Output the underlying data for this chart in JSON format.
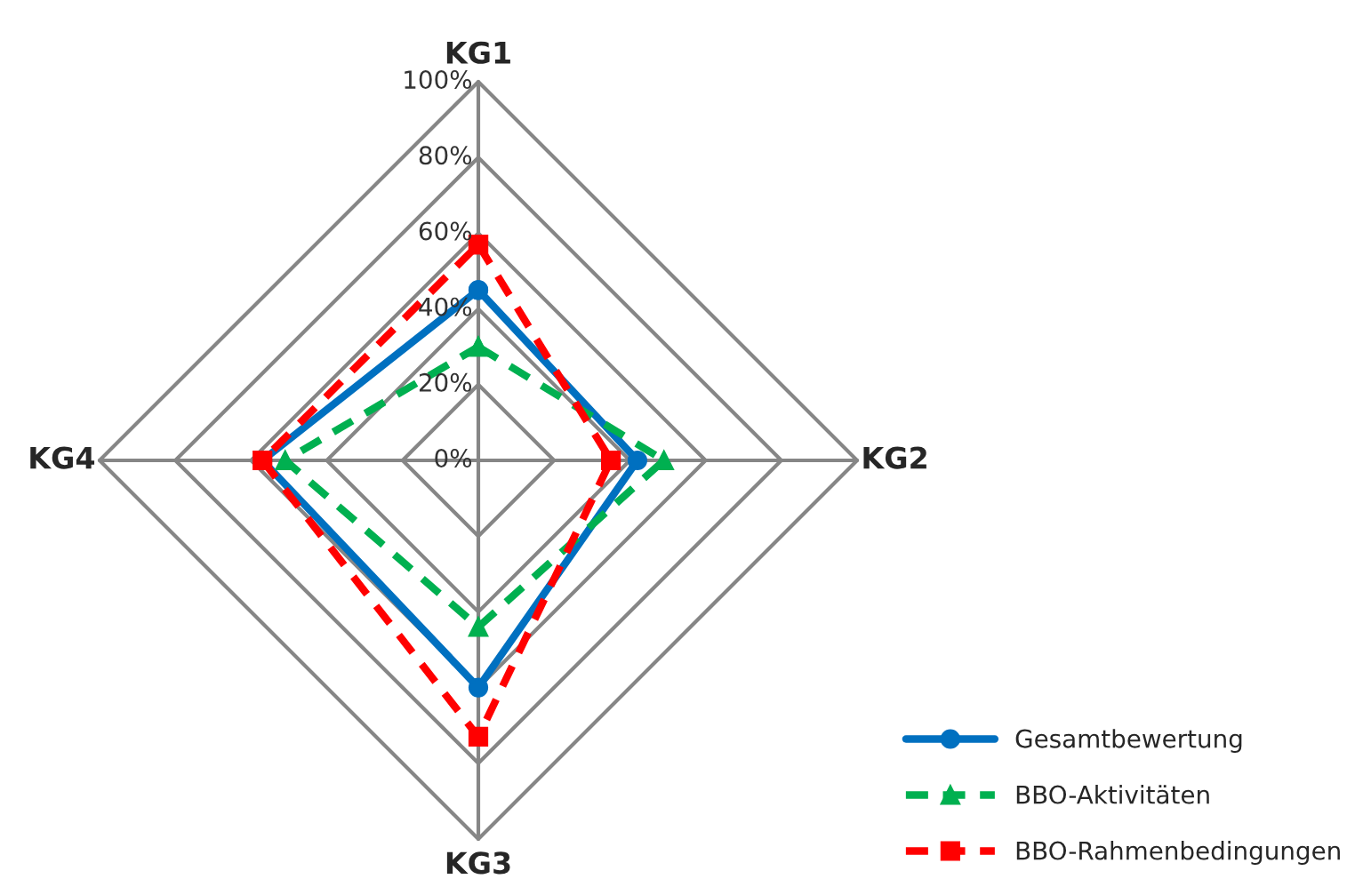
{
  "chart_data": {
    "type": "radar",
    "categories": [
      "KG1",
      "KG2",
      "KG3",
      "KG4"
    ],
    "ylim": [
      0,
      100
    ],
    "yticks": [
      {
        "value": 0,
        "label": "0%"
      },
      {
        "value": 20,
        "label": "20%"
      },
      {
        "value": 40,
        "label": "40%"
      },
      {
        "value": 60,
        "label": "60%"
      },
      {
        "value": 80,
        "label": "80%"
      },
      {
        "value": 100,
        "label": "100%"
      }
    ],
    "legend": "bottom right",
    "series": [
      {
        "name": "Gesamtbewertung",
        "color": "#0070c0",
        "marker": "circle",
        "line_style": "solid",
        "values": [
          45,
          42,
          60,
          57
        ]
      },
      {
        "name": "BBO-Aktivitäten",
        "color": "#00b050",
        "marker": "triangle",
        "line_style": "dashed",
        "values": [
          30,
          49,
          44,
          51
        ]
      },
      {
        "name": "BBO-Rahmenbedingungen",
        "color": "#ff0000",
        "marker": "square",
        "line_style": "dashed",
        "values": [
          57,
          35,
          73,
          57
        ]
      }
    ]
  }
}
